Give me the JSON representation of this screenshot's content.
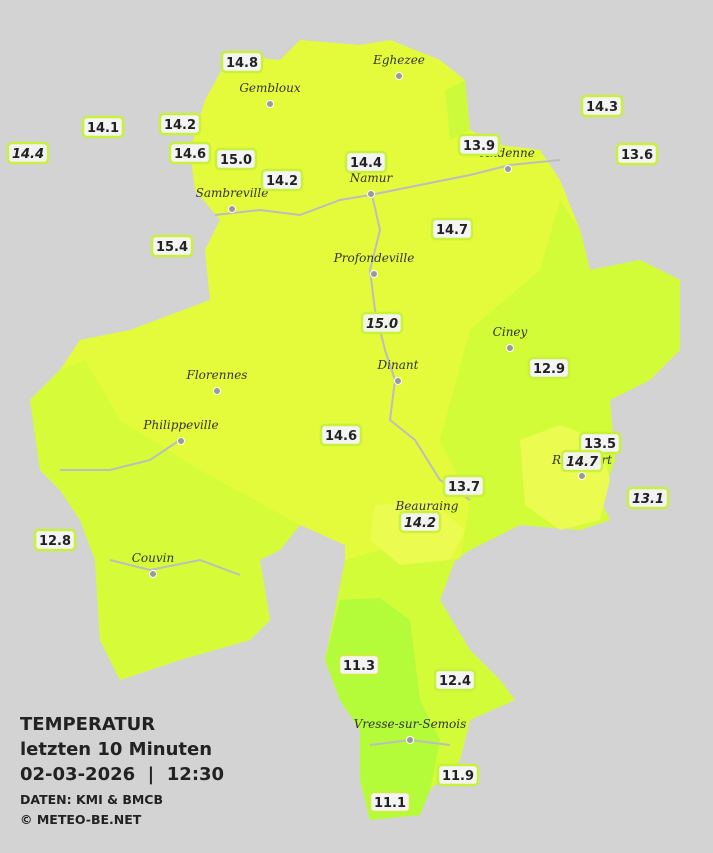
{
  "header": {
    "title": "TEMPERATUR",
    "subtitle": "letzten 10 Minuten",
    "datetime": "02-03-2026  |  12:30",
    "source": "DATEN: KMI & BMCB",
    "copyright": "© METEO-BE.NET"
  },
  "cities": [
    "Eghezee",
    "Gembloux",
    "Andenne",
    "Namur",
    "Sambreville",
    "Profondeville",
    "Ciney",
    "Dinant",
    "Florennes",
    "Philippeville",
    "Rochefort",
    "Beauraing",
    "Couvin",
    "Vresse-sur-Semois"
  ],
  "readings": [
    "14.8",
    "14.1",
    "14.2",
    "14.4",
    "14.6",
    "15.0",
    "14.2",
    "14.4",
    "13.9",
    "14.3",
    "13.6",
    "15.4",
    "14.7",
    "15.0",
    "12.9",
    "14.6",
    "13.5",
    "14.7",
    "13.7",
    "13.1",
    "14.2",
    "12.8",
    "11.3",
    "12.4",
    "11.9",
    "11.1"
  ]
}
